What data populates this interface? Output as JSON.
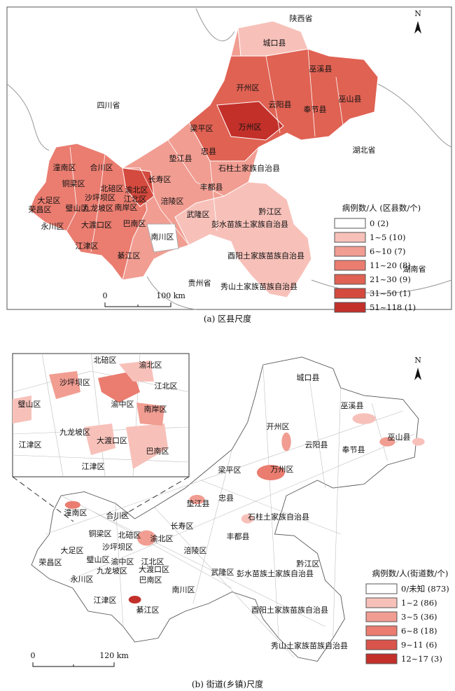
{
  "panel_a": {
    "caption": "(a) 区县尺度",
    "north": "N",
    "labels": [
      "陕西省",
      "城口县",
      "巫溪县",
      "开州区",
      "四川省",
      "云阳县",
      "奉节县",
      "巫山县",
      "万州区",
      "梁平区",
      "湖北省",
      "忠县",
      "垫江县",
      "石柱土家族自治县",
      "潼南区",
      "合川区",
      "长寿区",
      "北碚区",
      "渝北区",
      "铜梁区",
      "丰都县",
      "沙坪坝区",
      "江北区",
      "大足区",
      "涪陵区",
      "荣昌区",
      "璧山区",
      "九龙坡区",
      "南岸区",
      "黔江区",
      "武隆区",
      "永川区",
      "大渡口区",
      "巴南区",
      "彭水苗族土家族自治县",
      "南川区",
      "江津区",
      "綦江区",
      "酉阳土家族苗族自治县",
      "贵州省",
      "秀山土家族苗族自治县",
      "湖南省"
    ],
    "legend": {
      "title": "病例数/人 (区县数/个)",
      "items": [
        "0 (2)",
        "1~5 (10)",
        "6~10 (7)",
        "11~20 (8)",
        "21~30 (9)",
        "31~50 (1)",
        "51~118 (1)"
      ],
      "colors": [
        "#ffffff",
        "#f7c1ba",
        "#f19d92",
        "#ea7d70",
        "#e06253",
        "#d44a3e",
        "#c3302a"
      ]
    },
    "scale": [
      "0",
      "100 km"
    ]
  },
  "panel_b": {
    "caption": "(b) 街道(乡镇)尺度",
    "north": "N",
    "inset_labels": [
      "北碚区",
      "渝北区",
      "沙坪坝区",
      "江北区",
      "渝中区",
      "璧山区",
      "南岸区",
      "九龙坡区",
      "大渡口区",
      "江津区",
      "巴南区",
      "江津区"
    ],
    "labels": [
      "城口县",
      "巫溪县",
      "开州区",
      "云阳县",
      "巫山县",
      "奉节县",
      "万州区",
      "梁平区",
      "忠县",
      "垫江县",
      "石柱土家族自治县",
      "潼南区",
      "合川区",
      "长寿区",
      "丰都县",
      "铜梁区",
      "北碚区",
      "渝北区",
      "大足区",
      "沙坪坝区",
      "涪陵区",
      "荣昌区",
      "璧山区",
      "江北区",
      "渝中区",
      "九龙坡区",
      "大渡口区",
      "永川区",
      "巴南区",
      "黔江区",
      "武隆区",
      "彭水苗族土家族自治县",
      "南川区",
      "江津区",
      "綦江区",
      "酉阳土家族苗族自治县",
      "秀山土家族苗族自治县"
    ],
    "legend": {
      "title": "病例数/人(街道数/个)",
      "items": [
        "0/未知 (873)",
        "1~2 (86)",
        "3~5 (36)",
        "6~8 (18)",
        "9~11 (6)",
        "12~17 (3)"
      ],
      "colors": [
        "#ffffff",
        "#f7c1ba",
        "#f19d92",
        "#ea7d70",
        "#d9544a",
        "#c3302a"
      ]
    },
    "scale": [
      "0",
      "120 km"
    ]
  }
}
